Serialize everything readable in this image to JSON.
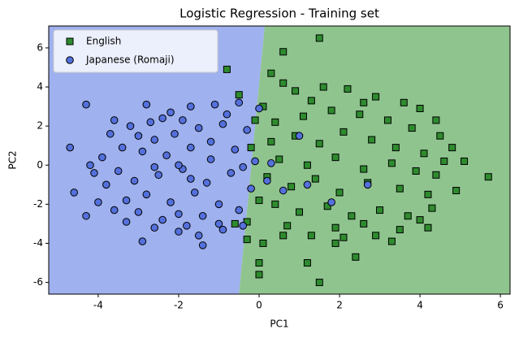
{
  "chart_data": {
    "type": "scatter",
    "title": "Logistic Regression - Training set",
    "x_label": "PC1",
    "y_label": "PC2",
    "xlim": [
      -5.23,
      6.24
    ],
    "ylim": [
      -6.6,
      7.12
    ],
    "xticks": [
      -4,
      -2,
      0,
      2,
      4,
      6
    ],
    "yticks": [
      -6,
      -4,
      -2,
      0,
      2,
      4,
      6
    ],
    "legend": "upper left",
    "decision_boundary": {
      "x": [
        0.14,
        -0.5
      ],
      "y": [
        7.12,
        -6.6
      ]
    },
    "series": [
      {
        "name": "English",
        "color": "#2e8b2e",
        "marker": "square",
        "region_color": "#8fc48f",
        "x": [
          1.5,
          0.6,
          -0.8,
          0.3,
          -0.3,
          0.0,
          0.0,
          1.5,
          1.2,
          2.4,
          5.7,
          5.1,
          4.6,
          -0.5,
          0.1,
          0.9,
          1.6,
          2.2,
          2.9,
          3.6,
          3.3,
          2.9,
          2.1,
          1.3,
          0.6,
          4.0,
          4.5,
          4.4,
          4.3,
          4.0,
          0.4,
          1.1,
          1.8,
          2.5,
          3.2,
          3.8,
          0.3,
          0.9,
          1.5,
          2.1,
          2.8,
          3.4,
          4.1,
          0.5,
          1.2,
          1.9,
          2.6,
          3.3,
          3.9,
          0.2,
          0.8,
          1.4,
          2.0,
          2.7,
          3.5,
          4.2,
          0.4,
          1.0,
          1.7,
          2.3,
          3.0,
          3.7,
          0.0,
          -0.2,
          -0.3,
          0.7,
          1.9,
          2.6,
          3.5,
          1.3,
          2.6,
          4.4,
          4.8,
          4.9,
          4.2,
          -0.6,
          0.1,
          0.6,
          1.9,
          -0.1
        ],
        "y": [
          6.5,
          5.8,
          4.9,
          4.7,
          -3.8,
          -5.0,
          -5.6,
          -6.0,
          -5.0,
          -4.7,
          -0.6,
          0.2,
          0.2,
          3.6,
          3.0,
          3.8,
          4.0,
          3.9,
          3.5,
          3.2,
          -3.9,
          -3.6,
          -3.7,
          -3.6,
          -3.6,
          2.9,
          1.5,
          -0.5,
          -2.2,
          -2.8,
          2.2,
          2.5,
          2.8,
          2.6,
          2.3,
          1.9,
          1.2,
          1.5,
          1.1,
          1.7,
          1.3,
          0.9,
          0.6,
          0.3,
          0.0,
          0.4,
          -0.2,
          0.1,
          -0.3,
          -0.6,
          -1.1,
          -0.7,
          -1.4,
          -0.9,
          -1.2,
          -1.5,
          -2.0,
          -2.4,
          -2.1,
          -2.6,
          -2.3,
          -2.6,
          -1.8,
          0.9,
          -2.9,
          -3.1,
          -3.2,
          -3.0,
          -3.3,
          3.3,
          3.2,
          2.3,
          0.9,
          -1.3,
          -3.2,
          -3.0,
          -4.0,
          4.2,
          -4.0,
          2.3
        ]
      },
      {
        "name": "Japanese (Romaji)",
        "color": "#5470dc",
        "marker": "circle",
        "region_color": "#9fb1ee",
        "x": [
          -4.3,
          -4.7,
          -4.6,
          -4.3,
          -2.9,
          -1.4,
          -3.7,
          -3.2,
          -2.7,
          -2.2,
          -1.7,
          -1.1,
          -0.5,
          -2.8,
          -3.9,
          -3.5,
          -3.8,
          -3.3,
          -3.0,
          -2.4,
          -1.8,
          -1.0,
          -0.4,
          -3.6,
          -2.6,
          -2.1,
          -1.5,
          -0.9,
          -0.3,
          -2.9,
          -2.3,
          -1.7,
          -1.2,
          -0.6,
          -0.1,
          -3.1,
          -2.5,
          -1.9,
          -1.3,
          -0.7,
          -0.2,
          -2.8,
          -2.2,
          -1.6,
          -1.0,
          -0.5,
          -2.0,
          -1.4,
          -3.4,
          -4.1,
          -4.0,
          -2.4,
          -1.9,
          -0.8,
          0.0,
          0.3,
          0.2,
          1.2,
          1.8,
          1.0,
          -3.6,
          -4.2,
          -2.0,
          -0.9,
          -1.5,
          -3.3,
          -2.6,
          -1.2,
          -2.0,
          -0.4,
          2.7,
          0.6,
          -1.7,
          -2.6,
          -3.0
        ],
        "y": [
          3.1,
          0.9,
          -1.4,
          -2.6,
          -3.9,
          -4.1,
          1.6,
          2.0,
          2.2,
          2.7,
          3.0,
          3.1,
          3.2,
          3.1,
          0.4,
          -0.3,
          -1.0,
          -1.8,
          -2.4,
          -2.8,
          -3.1,
          -3.0,
          -3.1,
          -2.3,
          1.3,
          1.6,
          1.9,
          2.1,
          1.8,
          0.7,
          0.5,
          0.9,
          0.3,
          0.8,
          0.2,
          -0.8,
          -0.5,
          -0.2,
          -0.9,
          -0.4,
          -1.2,
          -1.5,
          -1.9,
          -1.4,
          -2.0,
          -2.3,
          -2.5,
          -2.6,
          0.9,
          -0.4,
          -1.9,
          2.4,
          2.3,
          2.6,
          2.9,
          0.1,
          -0.8,
          -1.0,
          -1.9,
          1.5,
          2.3,
          0.0,
          -3.4,
          -3.3,
          -3.6,
          -2.9,
          -3.2,
          1.2,
          0.0,
          -0.1,
          -1.0,
          -1.3,
          -0.7,
          -0.1,
          1.5
        ]
      }
    ]
  }
}
